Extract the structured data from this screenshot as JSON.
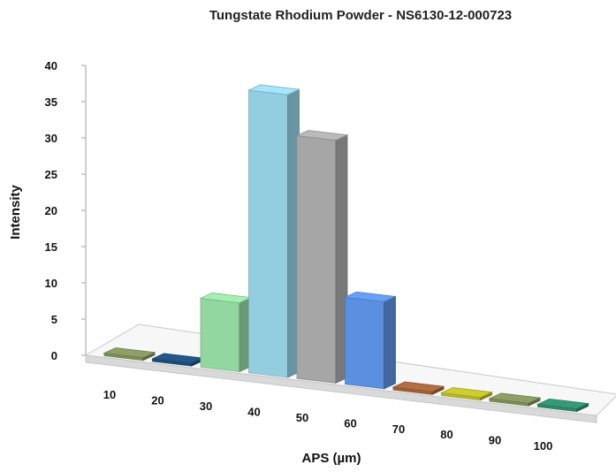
{
  "chart_data": {
    "type": "bar",
    "title": "Tungstate Rhodium Powder - NS6130-12-000723",
    "xlabel": "APS (µm)",
    "ylabel": "Intensity",
    "categories": [
      "10",
      "20",
      "30",
      "40",
      "50",
      "60",
      "70",
      "80",
      "90",
      "100"
    ],
    "values": [
      0,
      0,
      9.5,
      39,
      33.5,
      12,
      0,
      0,
      0,
      0
    ],
    "ylim": [
      0,
      40
    ],
    "yticks": [
      "0",
      "5",
      "10",
      "15",
      "20",
      "25",
      "30",
      "35",
      "40"
    ],
    "grid": false,
    "legend": "none",
    "style": "3d-column",
    "colors": [
      "#7f8f5a",
      "#1f4e79",
      "#92d6a0",
      "#92cde0",
      "#a6a6a6",
      "#5b8fe0",
      "#a0623a",
      "#b8b82a",
      "#7f8f5a",
      "#2f8a6a"
    ]
  }
}
